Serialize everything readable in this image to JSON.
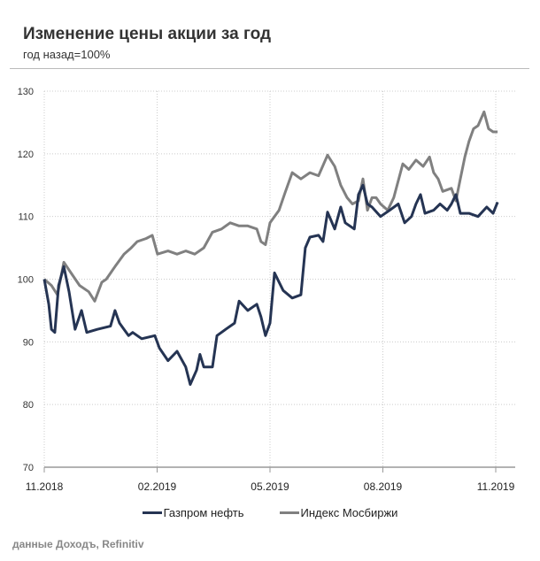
{
  "title": "Изменение цены акции за год",
  "subtitle": "год назад=100%",
  "source": "данные Доходъ, Refinitiv",
  "colors": {
    "gazprom": "#253453",
    "index": "#808080"
  },
  "chart_data": {
    "type": "line",
    "title": "Изменение цены акции за год",
    "subtitle": "год назад=100%",
    "xlabel": "",
    "ylabel": "",
    "x_unit": "months since 11.2018",
    "xlim": [
      0,
      12.5
    ],
    "ylim": [
      70,
      130
    ],
    "yticks": [
      70,
      80,
      90,
      100,
      110,
      120,
      130
    ],
    "xticks": [
      {
        "t": 0,
        "label": "11.2018"
      },
      {
        "t": 3,
        "label": "02.2019"
      },
      {
        "t": 6,
        "label": "05.2019"
      },
      {
        "t": 9,
        "label": "08.2019"
      },
      {
        "t": 12,
        "label": "11.2019"
      }
    ],
    "grid": true,
    "legend_position": "bottom",
    "series": [
      {
        "name": "Газпром нефть",
        "color": "#253453",
        "x": [
          0,
          0.12,
          0.19,
          0.28,
          0.38,
          0.52,
          0.66,
          0.82,
          0.99,
          1.13,
          1.41,
          1.76,
          1.88,
          2.0,
          2.12,
          2.24,
          2.35,
          2.59,
          2.94,
          3.06,
          3.29,
          3.53,
          3.76,
          3.88,
          4.05,
          4.14,
          4.24,
          4.47,
          4.59,
          4.82,
          5.06,
          5.18,
          5.41,
          5.65,
          5.76,
          5.88,
          6.0,
          6.12,
          6.35,
          6.59,
          6.82,
          6.94,
          7.06,
          7.29,
          7.41,
          7.53,
          7.72,
          7.88,
          8.0,
          8.24,
          8.35,
          8.47,
          8.59,
          8.71,
          8.94,
          9.18,
          9.41,
          9.58,
          9.76,
          9.88,
          10.0,
          10.12,
          10.35,
          10.52,
          10.71,
          10.82,
          10.94,
          11.06,
          11.29,
          11.53,
          11.76,
          11.93,
          12.05
        ],
        "y": [
          100,
          96,
          92,
          91.5,
          99,
          102,
          98,
          92,
          95,
          91.5,
          92,
          92.5,
          95,
          93,
          92,
          91,
          91.5,
          90.5,
          91,
          89,
          87,
          88.5,
          86,
          83.2,
          85.5,
          88,
          86,
          86,
          91,
          92,
          93,
          96.5,
          95,
          96,
          94,
          91,
          93,
          101,
          98.2,
          97,
          97.5,
          105,
          106.7,
          107,
          106,
          110.7,
          108,
          111.5,
          109,
          108,
          113.5,
          115,
          112,
          111.5,
          110,
          111,
          112,
          109,
          110,
          112,
          113.5,
          110.5,
          111,
          112,
          111,
          112,
          113.5,
          110.5,
          110.5,
          110,
          111.5,
          110.5,
          112.3
        ]
      },
      {
        "name": "Индекс Мосбиржи",
        "color": "#808080",
        "x": [
          0,
          0.19,
          0.35,
          0.52,
          0.71,
          0.94,
          1.18,
          1.34,
          1.53,
          1.65,
          1.88,
          2.12,
          2.31,
          2.47,
          2.71,
          2.87,
          3.01,
          3.29,
          3.53,
          3.76,
          4.0,
          4.24,
          4.47,
          4.71,
          4.94,
          5.18,
          5.41,
          5.65,
          5.76,
          5.88,
          6.0,
          6.24,
          6.4,
          6.59,
          6.82,
          7.06,
          7.29,
          7.53,
          7.72,
          7.88,
          8.05,
          8.19,
          8.35,
          8.47,
          8.59,
          8.71,
          8.82,
          8.94,
          9.13,
          9.29,
          9.53,
          9.69,
          9.88,
          10.07,
          10.24,
          10.35,
          10.47,
          10.59,
          10.82,
          10.94,
          11.06,
          11.18,
          11.29,
          11.41,
          11.53,
          11.69,
          11.81,
          11.93,
          12.05
        ],
        "y": [
          100,
          99,
          97.5,
          102.7,
          101,
          99,
          98,
          96.5,
          99.5,
          100,
          102,
          104,
          105,
          106,
          106.5,
          107,
          104,
          104.5,
          104,
          104.5,
          104,
          105,
          107.5,
          108,
          109,
          108.5,
          108.5,
          108,
          106,
          105.5,
          109,
          111,
          113.8,
          117,
          116,
          117,
          116.5,
          119.8,
          118,
          115,
          113,
          112,
          112.5,
          116,
          111,
          113,
          113,
          112,
          111,
          113,
          118.4,
          117.5,
          119,
          118,
          119.5,
          117,
          116,
          114,
          114.5,
          112.5,
          116,
          119.5,
          122,
          124,
          124.5,
          126.7,
          124,
          123.5,
          123.5
        ]
      }
    ]
  }
}
